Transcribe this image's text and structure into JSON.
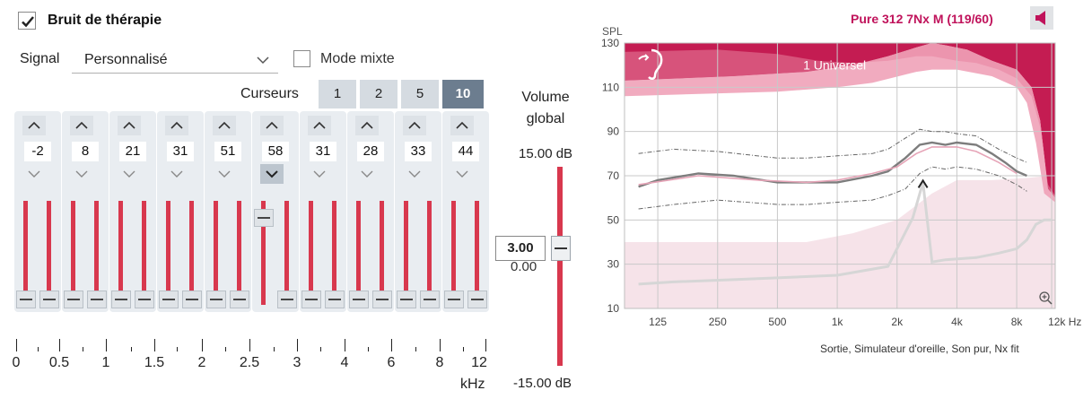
{
  "header": {
    "title": "Bruit de thérapie",
    "checked": true
  },
  "signal": {
    "label": "Signal",
    "value": "Personnalisé",
    "mixed_mode_label": "Mode mixte",
    "mixed_mode_checked": false
  },
  "cursors": {
    "label": "Curseurs",
    "options": [
      "1",
      "2",
      "5",
      "10"
    ],
    "selected": "10"
  },
  "bands": [
    {
      "value": "-2",
      "level": 0.0
    },
    {
      "value": "8",
      "level": 0.0
    },
    {
      "value": "21",
      "level": 0.0
    },
    {
      "value": "31",
      "level": 0.0
    },
    {
      "value": "51",
      "level": 0.0
    },
    {
      "value": "58",
      "level": 0.95
    },
    {
      "value": "31",
      "level": 0.0
    },
    {
      "value": "28",
      "level": 0.0
    },
    {
      "value": "33",
      "level": 0.0
    },
    {
      "value": "44",
      "level": 0.0
    }
  ],
  "freq_scale": {
    "labels": [
      "0",
      "0.5",
      "1",
      "1.5",
      "2",
      "2.5",
      "3",
      "4",
      "6",
      "8",
      "12"
    ],
    "unit": "kHz"
  },
  "volume": {
    "title_line1": "Volume",
    "title_line2": "global",
    "max": "15.00 dB",
    "min": "-15.00 dB",
    "value": "3.00",
    "zero": "0.00"
  },
  "chart": {
    "device": "Pure 312 7Nx M (119/60)",
    "y_unit": "SPL",
    "annotation": "1 Universel",
    "caption": "Sortie, Simulateur d'oreille, Son pur, Nx fit",
    "colors": {
      "accent": "#c0135b",
      "light_fill": "#f6e3e9",
      "uncomfortable_fill": "#d2466d"
    }
  },
  "chart_data": {
    "type": "line",
    "ylabel": "SPL",
    "ylim": [
      10,
      130
    ],
    "y_ticks": [
      "10",
      "30",
      "50",
      "70",
      "90",
      "110",
      "130"
    ],
    "x_scale": "log",
    "x_ticks": [
      "125",
      "250",
      "500",
      "1k",
      "2k",
      "4k",
      "8k",
      "12k Hz"
    ],
    "x_tick_values": [
      125,
      250,
      500,
      1000,
      2000,
      4000,
      8000,
      12000
    ],
    "series": [
      {
        "role": "main",
        "x": [
          100,
          125,
          200,
          300,
          500,
          700,
          1000,
          1500,
          1800,
          2200,
          2600,
          3000,
          3500,
          4000,
          5000,
          6000,
          7000,
          8000,
          9000
        ],
        "y": [
          65,
          68,
          71,
          70,
          67,
          67,
          67,
          70,
          72,
          78,
          84,
          85,
          84,
          85,
          84,
          80,
          76,
          72,
          70
        ]
      },
      {
        "role": "target",
        "x": [
          100,
          200,
          400,
          700,
          1000,
          1500,
          2000,
          2500,
          3000,
          4000,
          5000,
          6500,
          8000
        ],
        "y": [
          66,
          70,
          68,
          67,
          68,
          71,
          74,
          80,
          83,
          83,
          81,
          76,
          71
        ]
      },
      {
        "role": "upper",
        "x": [
          100,
          150,
          250,
          500,
          700,
          1000,
          1500,
          1800,
          2200,
          2600,
          3000,
          3500,
          4000,
          5000,
          6500,
          8000,
          9000
        ],
        "y": [
          80,
          82,
          81,
          78,
          78,
          79,
          80,
          82,
          87,
          91,
          90,
          90,
          89,
          88,
          82,
          78,
          76
        ]
      },
      {
        "role": "lower",
        "x": [
          100,
          150,
          250,
          500,
          700,
          1000,
          1500,
          1800,
          2200,
          2600,
          3000,
          3500,
          4000,
          5000,
          6500,
          8000,
          9000
        ],
        "y": [
          55,
          57,
          59,
          57,
          57,
          58,
          59,
          61,
          64,
          71,
          74,
          73,
          74,
          73,
          70,
          66,
          63
        ]
      },
      {
        "role": "low_signal",
        "x": [
          100,
          150,
          300,
          1000,
          1800,
          2400,
          2700,
          3000,
          3500,
          5000,
          6500,
          8000,
          9000,
          10000,
          11000,
          12000
        ],
        "y": [
          21,
          22,
          23,
          25,
          29,
          51,
          67,
          31,
          32,
          33,
          35,
          37,
          41,
          48,
          50,
          50
        ]
      }
    ]
  }
}
